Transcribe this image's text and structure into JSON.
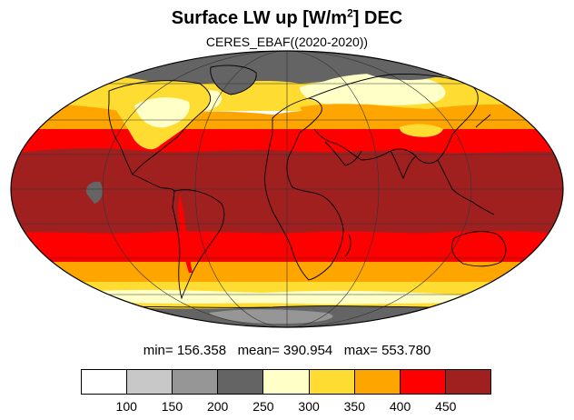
{
  "title": {
    "main": "Surface LW up [W/m",
    "sup": "2",
    "end": "]  DEC"
  },
  "subtitle": "CERES_EBAF((2020-2020))",
  "stats": {
    "min_label": "min=",
    "min": "156.358",
    "mean_label": "mean=",
    "mean": "390.954",
    "max_label": "max=",
    "max": "553.780"
  },
  "colorbar": {
    "colors": [
      "#ffffff",
      "#c8c8c8",
      "#969696",
      "#646464",
      "#ffffc8",
      "#ffdc32",
      "#ffa500",
      "#ff0000",
      "#a02020"
    ],
    "labels": [
      "100",
      "150",
      "200",
      "250",
      "300",
      "350",
      "400",
      "450"
    ]
  },
  "map": {
    "projection": "Mollweide",
    "field": "Surface longwave upward flux",
    "month": "DEC",
    "ocean_land_colors": {
      "tropics": "#a02020",
      "subtropics": "#ff0000",
      "midlatitude": "#ffa500",
      "highlatitude": "#ffdc32",
      "cold": "#ffffc8",
      "polar": "#646464",
      "deep_polar": "#969696"
    }
  }
}
